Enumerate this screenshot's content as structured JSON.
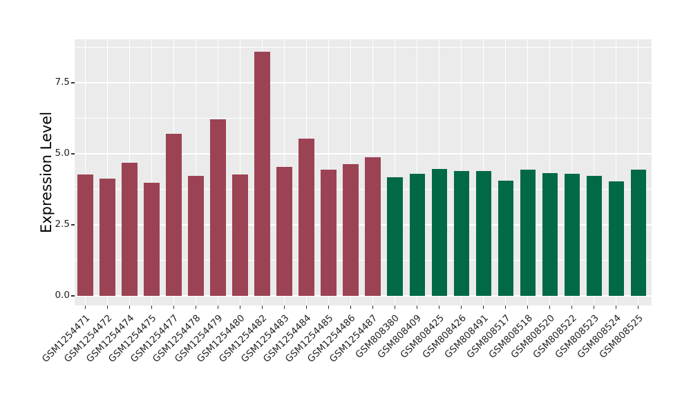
{
  "chart_data": {
    "type": "bar",
    "title": "",
    "ylabel": "Expression Level",
    "xlabel": "",
    "categories": [
      "GSM1254471",
      "GSM1254472",
      "GSM1254474",
      "GSM1254475",
      "GSM1254477",
      "GSM1254478",
      "GSM1254479",
      "GSM1254480",
      "GSM1254482",
      "GSM1254483",
      "GSM1254484",
      "GSM1254485",
      "GSM1254486",
      "GSM1254487",
      "GSM808380",
      "GSM808409",
      "GSM808425",
      "GSM808426",
      "GSM808491",
      "GSM808517",
      "GSM808518",
      "GSM808520",
      "GSM808522",
      "GSM808523",
      "GSM808524",
      "GSM808525"
    ],
    "values": [
      4.28,
      4.13,
      4.69,
      3.99,
      5.71,
      4.23,
      6.21,
      4.26,
      8.6,
      4.55,
      5.54,
      4.43,
      4.64,
      4.88,
      4.17,
      4.3,
      4.47,
      4.39,
      4.4,
      4.05,
      4.43,
      4.33,
      4.3,
      4.23,
      4.04,
      4.43
    ],
    "group_sizes": [
      14,
      12
    ],
    "group_colors": [
      "#9B4354",
      "#016946"
    ],
    "y_ticks": [
      0.0,
      2.5,
      5.0,
      7.5
    ],
    "y_tick_labels": [
      "0.0",
      "2.5",
      "5.0",
      "7.5"
    ],
    "y_minor_gridlines": [
      1.25,
      3.75,
      6.25,
      8.75
    ],
    "ylim": [
      -0.35,
      9.03
    ],
    "grid": "on",
    "legend_position": "none"
  },
  "style": {
    "page_background": "#FFFFFF",
    "panel_background": "#EBEBEB",
    "grid_color": "#FFFFFF",
    "tick_mark_color": "#333333",
    "axis_text_color": "#1F1F1F",
    "axis_title_color": "#000000"
  }
}
